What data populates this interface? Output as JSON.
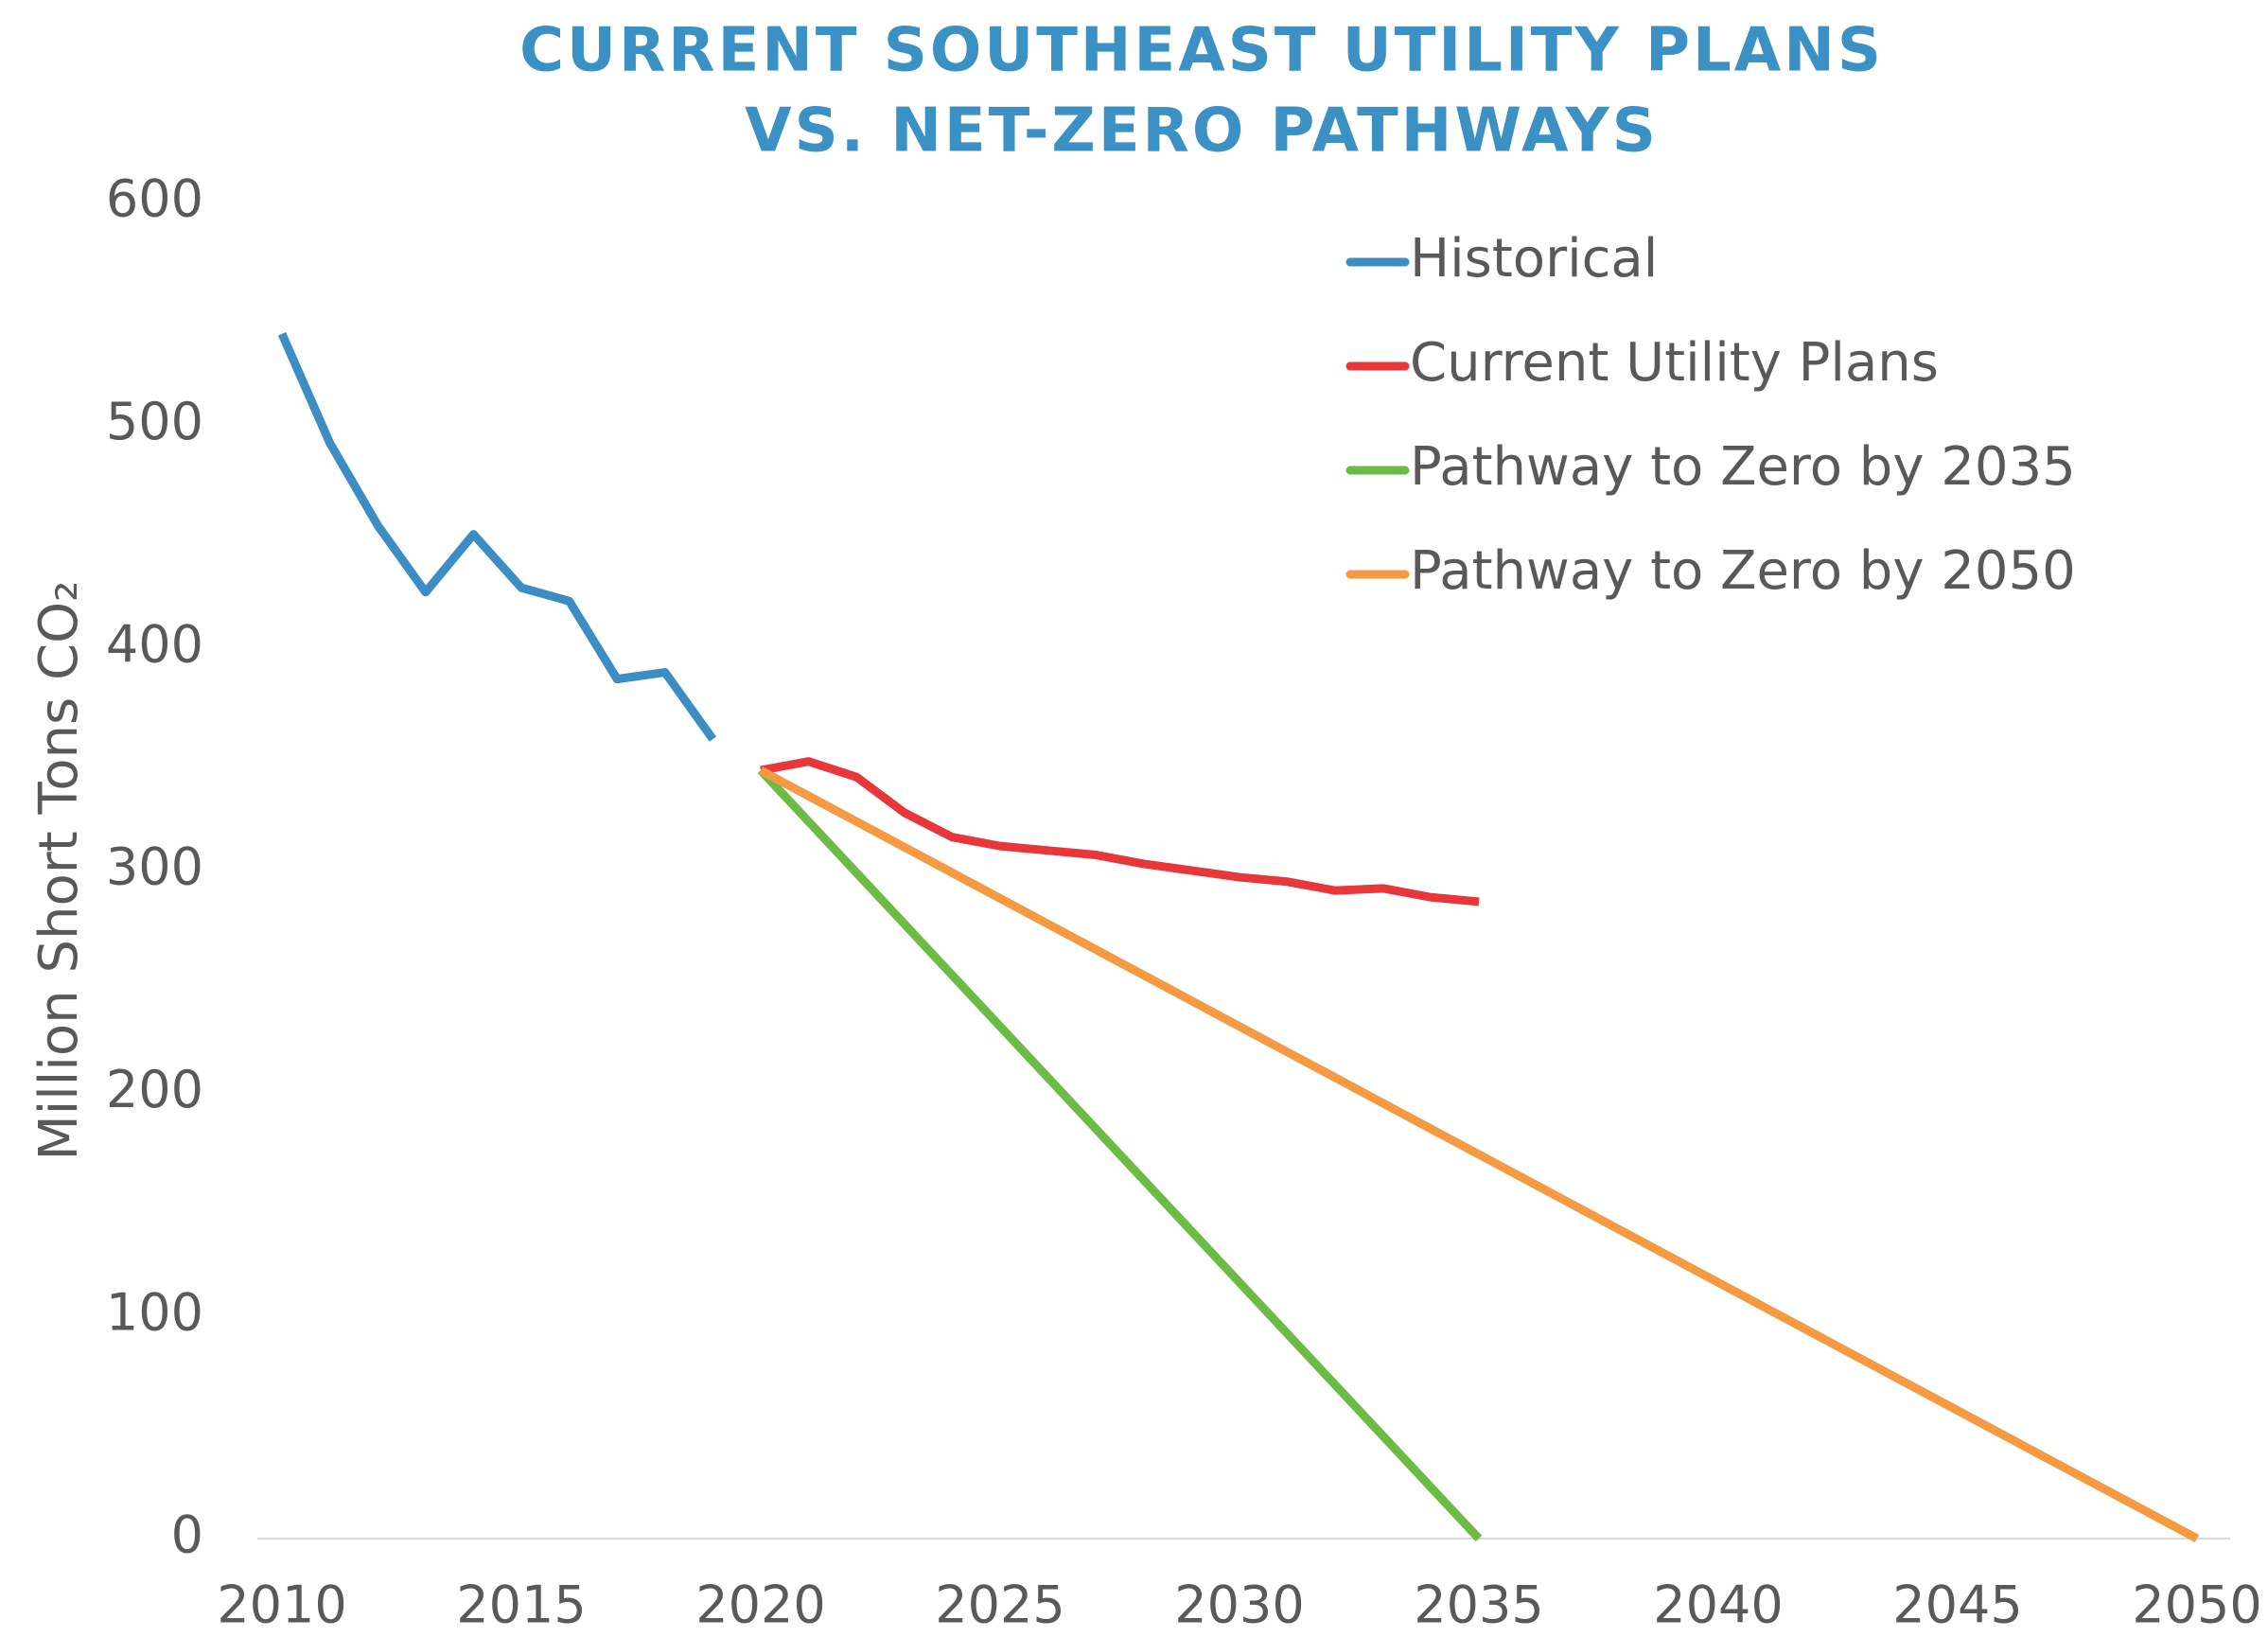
{
  "chart_data": {
    "type": "line",
    "title": [
      "CURRENT SOUTHEAST UTILITY PLANS",
      "VS. NET-ZERO PATHWAYS"
    ],
    "y_label": "Million Short Tons CO₂",
    "xlim": [
      2010,
      2050
    ],
    "xticks": [
      2010,
      2015,
      2020,
      2025,
      2030,
      2035,
      2040,
      2045,
      2050
    ],
    "ylim": [
      0,
      600
    ],
    "yticks": [
      0,
      100,
      200,
      300,
      400,
      500,
      600
    ],
    "legend": "top-right",
    "series": [
      {
        "name": "Historical",
        "color": "#3b8dc3",
        "x": [
          2010,
          2011,
          2012,
          2013,
          2014,
          2015,
          2016,
          2017,
          2018,
          2019
        ],
        "values": [
          541,
          492,
          455,
          425,
          451,
          427,
          421,
          386,
          389,
          359
        ]
      },
      {
        "name": "Current Utility Plans",
        "color": "#e8373a",
        "x": [
          2020,
          2021,
          2022,
          2023,
          2024,
          2025,
          2026,
          2027,
          2028,
          2029,
          2030,
          2031,
          2032,
          2033,
          2034,
          2035
        ],
        "values": [
          345,
          349,
          342,
          326,
          315,
          311,
          309,
          307,
          303,
          300,
          297,
          295,
          291,
          292,
          288,
          286
        ]
      },
      {
        "name": "Pathway to Zero by 2035",
        "color": "#6bbb45",
        "x": [
          2020,
          2035
        ],
        "values": [
          345,
          0
        ]
      },
      {
        "name": "Pathway to Zero by 2050",
        "color": "#f39a43",
        "x": [
          2020,
          2050
        ],
        "values": [
          345,
          0
        ]
      }
    ]
  }
}
